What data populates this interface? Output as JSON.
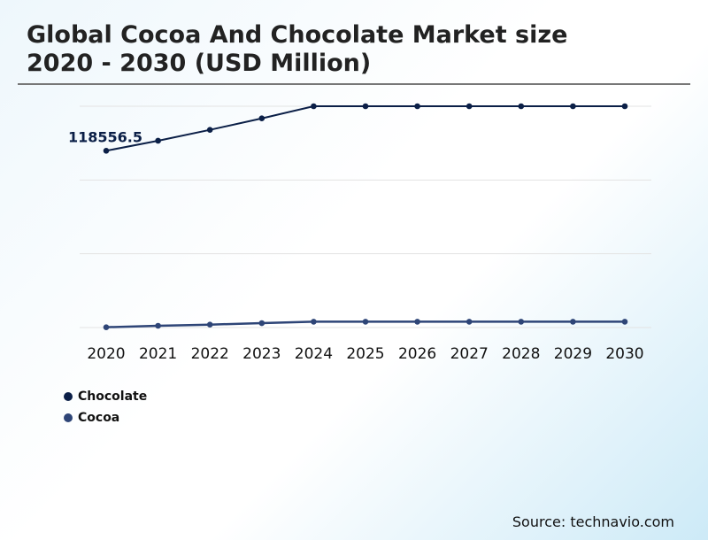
{
  "title_line1": "Global Cocoa And Chocolate Market size",
  "title_line2": "2020 - 2030 (USD Million)",
  "source": "Source: technavio.com",
  "chart_data": {
    "type": "line",
    "categories": [
      "2020",
      "2021",
      "2022",
      "2023",
      "2024",
      "2025",
      "2026",
      "2027",
      "2028",
      "2029",
      "2030"
    ],
    "ylim": [
      0,
      148400
    ],
    "grid": true,
    "legend_position": "bottom-left",
    "series": [
      {
        "name": "Chocolate",
        "color": "#0b1f47",
        "values": [
          118556.5,
          125260,
          132550,
          140260,
          148400,
          148400,
          148400,
          148400,
          148400,
          148400,
          148400
        ]
      },
      {
        "name": "Cocoa",
        "color": "#2e4577",
        "values": [
          200,
          1190,
          1960,
          2960,
          3910,
          3910,
          3910,
          3910,
          3910,
          3910,
          3910
        ]
      }
    ],
    "annotations": [
      {
        "category": "2020",
        "series": "Chocolate",
        "text": "118556.5"
      }
    ]
  }
}
